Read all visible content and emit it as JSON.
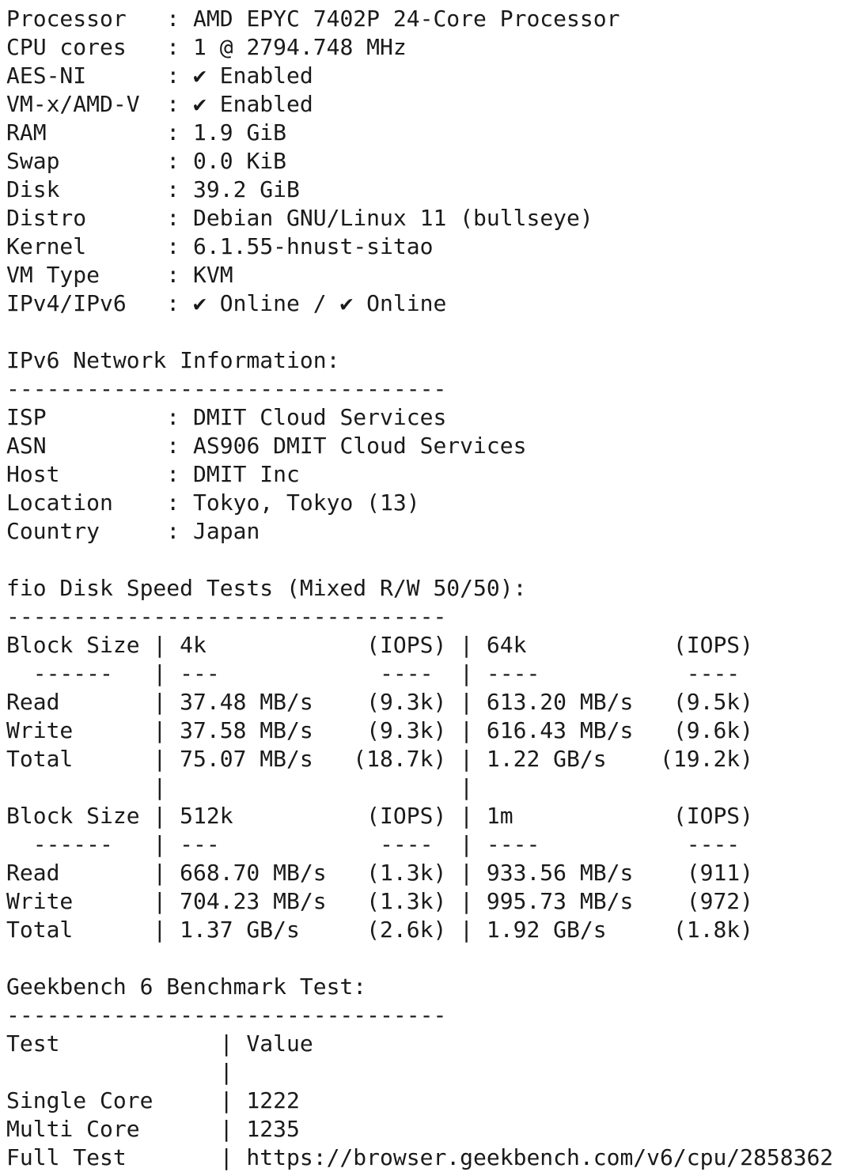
{
  "system": [
    {
      "key": "Processor",
      "value": "AMD EPYC 7402P 24-Core Processor"
    },
    {
      "key": "CPU cores",
      "value": "1 @ 2794.748 MHz"
    },
    {
      "key": "AES-NI",
      "value": "✔ Enabled"
    },
    {
      "key": "VM-x/AMD-V",
      "value": "✔ Enabled"
    },
    {
      "key": "RAM",
      "value": "1.9 GiB"
    },
    {
      "key": "Swap",
      "value": "0.0 KiB"
    },
    {
      "key": "Disk",
      "value": "39.2 GiB"
    },
    {
      "key": "Distro",
      "value": "Debian GNU/Linux 11 (bullseye)"
    },
    {
      "key": "Kernel",
      "value": "6.1.55-hnust-sitao"
    },
    {
      "key": "VM Type",
      "value": "KVM"
    },
    {
      "key": "IPv4/IPv6",
      "value": "✔ Online / ✔ Online"
    }
  ],
  "network": {
    "heading": "IPv6 Network Information:",
    "rule": "---------------------------------",
    "rows": [
      {
        "key": "ISP",
        "value": "DMIT Cloud Services"
      },
      {
        "key": "ASN",
        "value": "AS906 DMIT Cloud Services"
      },
      {
        "key": "Host",
        "value": "DMIT Inc"
      },
      {
        "key": "Location",
        "value": "Tokyo, Tokyo (13)"
      },
      {
        "key": "Country",
        "value": "Japan"
      }
    ]
  },
  "fio": {
    "heading": "fio Disk Speed Tests (Mixed R/W 50/50):",
    "rule": "---------------------------------",
    "lines": [
      "Block Size | 4k            (IOPS) | 64k           (IOPS)",
      "  ------   | ---            ----  | ----           ---- ",
      "Read       | 37.48 MB/s    (9.3k) | 613.20 MB/s   (9.5k)",
      "Write      | 37.58 MB/s    (9.3k) | 616.43 MB/s   (9.6k)",
      "Total      | 75.07 MB/s   (18.7k) | 1.22 GB/s    (19.2k)",
      "           |                      |                     ",
      "Block Size | 512k          (IOPS) | 1m            (IOPS)",
      "  ------   | ---            ----  | ----           ---- ",
      "Read       | 668.70 MB/s   (1.3k) | 933.56 MB/s    (911)",
      "Write      | 704.23 MB/s   (1.3k) | 995.73 MB/s    (972)",
      "Total      | 1.37 GB/s     (2.6k) | 1.92 GB/s     (1.8k)"
    ]
  },
  "geekbench": {
    "heading": "Geekbench 6 Benchmark Test:",
    "rule": "---------------------------------",
    "lines": [
      "Test            | Value",
      "                |",
      "Single Core     | 1222",
      "Multi Core      | 1235",
      "Full Test       | https://browser.geekbench.com/v6/cpu/2858362"
    ]
  }
}
